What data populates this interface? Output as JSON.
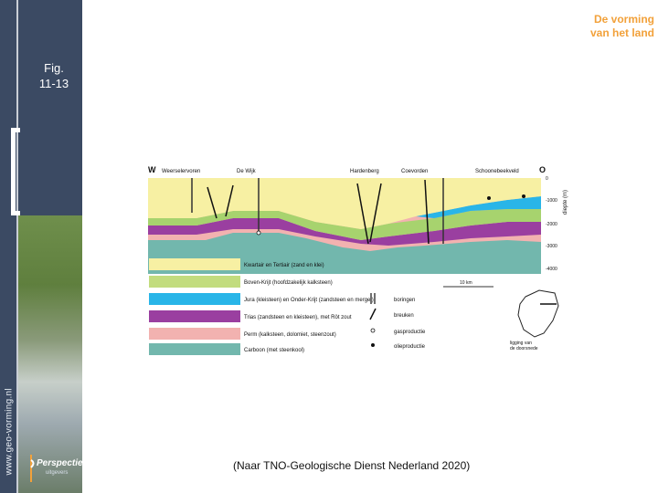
{
  "sidebar": {
    "brand_line1": "De vorming",
    "brand_line2": "van het land",
    "fig_line1": "Fig.",
    "fig_line2": "11-13",
    "url": "www.geo-vorming.nl",
    "logo_text": "Perspectief",
    "logo_sub": "uitgevers"
  },
  "figure": {
    "west_label": "W",
    "east_label": "O",
    "places": [
      "Weerselervoren",
      "De Wijk",
      "Hardenberg",
      "Coevorden",
      "Schoonebeekveld"
    ],
    "depth_unit": "diepte (m)",
    "depth_ticks": [
      "0",
      "-1000",
      "-2000",
      "-3000",
      "-4000"
    ],
    "scale_label": "10 km",
    "legend_layers": [
      {
        "label": "Kwartair en Tertiair (zand en klei)",
        "color": "#f7f0a3"
      },
      {
        "label": "Boven-Krijt (hoofdzakelijk kalksteen)",
        "color": "#c2dc7e"
      },
      {
        "label": "Jura (kleisteen) en Onder-Krijt (zandsteen en mergel)",
        "color": "#29b5e8"
      },
      {
        "label": "Trias (zandsteen en kleisteen), met Röt zout",
        "color": "#9a3fa0"
      },
      {
        "label": "Perm (kalksteen, dolomiet, steenzout)",
        "color": "#f2b2b0"
      },
      {
        "label": "Carboon (met steenkool)",
        "color": "#72b7ad"
      }
    ],
    "legend_symbols": [
      {
        "label": "boringen",
        "icon": "double-line"
      },
      {
        "label": "breuken",
        "icon": "slash"
      },
      {
        "label": "gasproductie",
        "icon": "open-circle"
      },
      {
        "label": "olieproductie",
        "icon": "filled-circle"
      }
    ],
    "map_label_line1": "ligging van",
    "map_label_line2": "de doorsnede"
  },
  "caption": "(Naar TNO-Geologische Dienst Nederland 2020)"
}
